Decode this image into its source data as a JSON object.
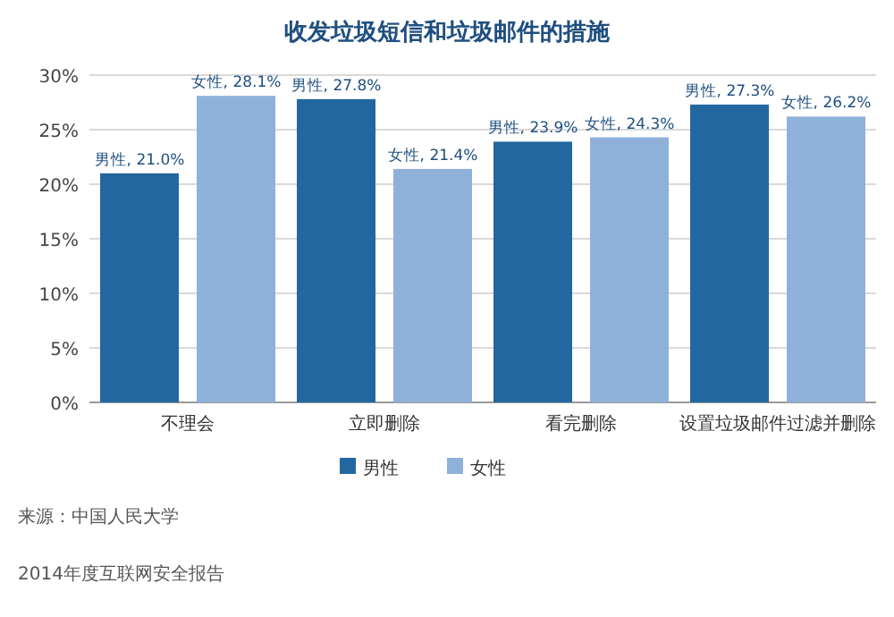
{
  "chart_data": {
    "type": "bar",
    "title": "收发垃圾短信和垃圾邮件的措施",
    "categories": [
      "不理会",
      "立即删除",
      "看完删除",
      "设置垃圾邮件过滤并删除"
    ],
    "series": [
      {
        "name": "男性",
        "color": "#2367a0",
        "values": [
          21.0,
          27.8,
          23.9,
          27.3
        ],
        "value_labels": [
          "男性, 21.0%",
          "男性, 27.8%",
          "男性, 23.9%",
          "男性, 27.3%"
        ]
      },
      {
        "name": "女性",
        "color": "#8fb1d9",
        "values": [
          28.1,
          21.4,
          24.3,
          26.2
        ],
        "value_labels": [
          "女性, 28.1%",
          "女性, 21.4%",
          "女性, 24.3%",
          "女性, 26.2%"
        ]
      }
    ],
    "ylim": [
      0,
      30
    ],
    "yticks": [
      {
        "value": 0,
        "label": "0%"
      },
      {
        "value": 5,
        "label": "5%"
      },
      {
        "value": 10,
        "label": "10%"
      },
      {
        "value": 15,
        "label": "15%"
      },
      {
        "value": 20,
        "label": "20%"
      },
      {
        "value": 25,
        "label": "25%"
      },
      {
        "value": 30,
        "label": "30%"
      }
    ],
    "grid": "y",
    "legend": "bottom",
    "annotations": [
      "来源：中国人民大学",
      "2014年度互联网安全报告"
    ]
  }
}
